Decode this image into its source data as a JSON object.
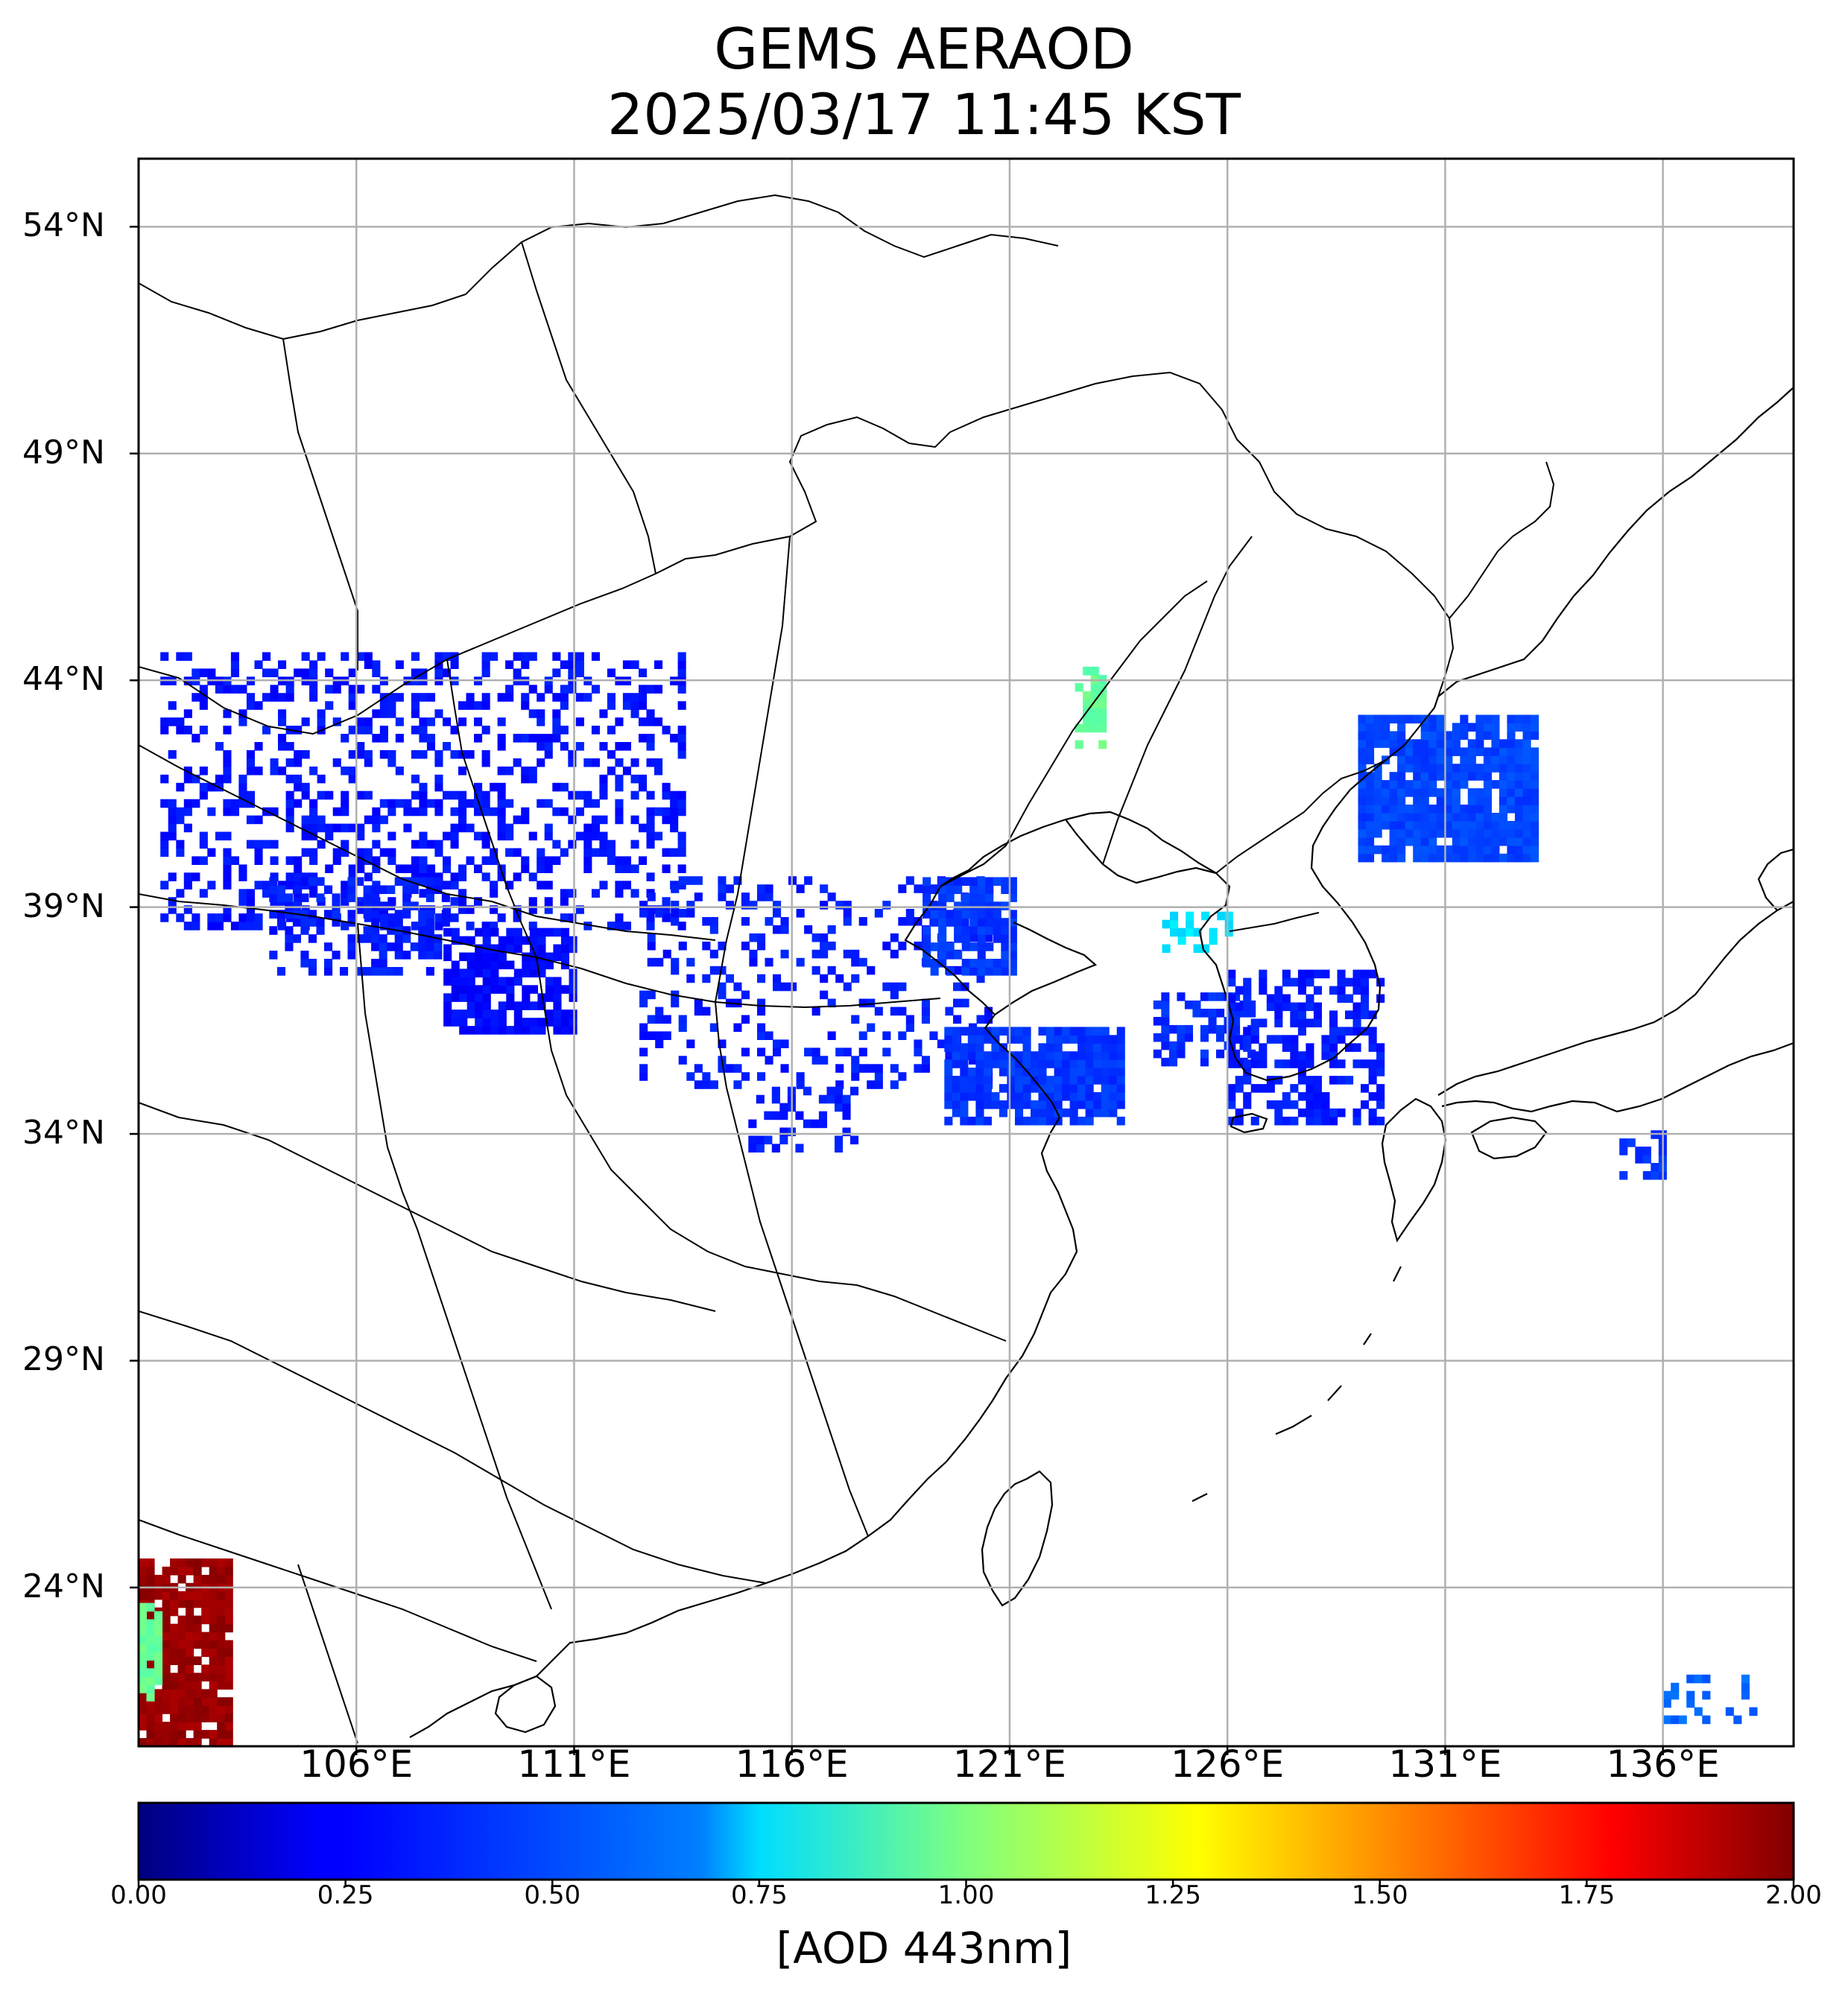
{
  "title": {
    "line1": "GEMS AERAOD",
    "line2": "2025/03/17 11:45 KST"
  },
  "map": {
    "lon_range": [
      101,
      139
    ],
    "lat_range": [
      20.5,
      55.5
    ],
    "lat_ticks": [
      {
        "value": 54,
        "label": "54°N"
      },
      {
        "value": 49,
        "label": "49°N"
      },
      {
        "value": 44,
        "label": "44°N"
      },
      {
        "value": 39,
        "label": "39°N"
      },
      {
        "value": 34,
        "label": "34°N"
      },
      {
        "value": 29,
        "label": "29°N"
      },
      {
        "value": 24,
        "label": "24°N"
      }
    ],
    "lon_ticks": [
      {
        "value": 106,
        "label": "106°E"
      },
      {
        "value": 111,
        "label": "111°E"
      },
      {
        "value": 116,
        "label": "116°E"
      },
      {
        "value": 121,
        "label": "121°E"
      },
      {
        "value": 126,
        "label": "126°E"
      },
      {
        "value": 131,
        "label": "131°E"
      },
      {
        "value": 136,
        "label": "136°E"
      }
    ],
    "grid": true,
    "aod_regions": [
      {
        "lon": [
          101.5,
          113.5
        ],
        "lat": [
          38.5,
          44.5
        ],
        "aod": 0.28,
        "density": 0.35
      },
      {
        "lon": [
          108.0,
          111.0
        ],
        "lat": [
          36.2,
          38.5
        ],
        "aod": 0.26,
        "density": 0.75
      },
      {
        "lon": [
          104.0,
          108.0
        ],
        "lat": [
          37.5,
          39.5
        ],
        "aod": 0.3,
        "density": 0.45
      },
      {
        "lon": [
          112.5,
          120.5
        ],
        "lat": [
          35.0,
          39.5
        ],
        "aod": 0.3,
        "density": 0.22
      },
      {
        "lon": [
          119.0,
          121.0
        ],
        "lat": [
          37.5,
          39.5
        ],
        "aod": 0.35,
        "density": 0.7
      },
      {
        "lon": [
          119.5,
          123.5
        ],
        "lat": [
          34.2,
          36.2
        ],
        "aod": 0.35,
        "density": 0.85
      },
      {
        "lon": [
          124.3,
          126.5
        ],
        "lat": [
          35.5,
          37.0
        ],
        "aod": 0.33,
        "density": 0.55
      },
      {
        "lon": [
          126.0,
          129.5
        ],
        "lat": [
          34.2,
          37.5
        ],
        "aod": 0.3,
        "density": 0.5
      },
      {
        "lon": [
          129.0,
          133.0
        ],
        "lat": [
          40.0,
          43.2
        ],
        "aod": 0.38,
        "density": 0.85
      },
      {
        "lon": [
          115.0,
          117.5
        ],
        "lat": [
          33.6,
          35.0
        ],
        "aod": 0.3,
        "density": 0.35
      },
      {
        "lon": [
          122.5,
          123.2
        ],
        "lat": [
          42.5,
          44.3
        ],
        "aod": 0.95,
        "density": 0.6
      },
      {
        "lon": [
          124.5,
          126.0
        ],
        "lat": [
          38.0,
          38.8
        ],
        "aod": 0.7,
        "density": 0.5
      },
      {
        "lon": [
          101.0,
          103.0
        ],
        "lat": [
          20.5,
          24.5
        ],
        "aod": 1.95,
        "density": 0.9
      },
      {
        "lon": [
          101.0,
          101.4
        ],
        "lat": [
          21.5,
          23.5
        ],
        "aod": 0.95,
        "density": 0.8
      },
      {
        "lon": [
          136.0,
          138.0
        ],
        "lat": [
          21.0,
          22.0
        ],
        "aod": 0.45,
        "density": 0.3
      },
      {
        "lon": [
          135.0,
          136.0
        ],
        "lat": [
          33.0,
          34.0
        ],
        "aod": 0.35,
        "density": 0.5
      }
    ]
  },
  "colorbar": {
    "min": 0,
    "max": 2,
    "colormap": "jet",
    "ticks": [
      "0.00",
      "0.25",
      "0.50",
      "0.75",
      "1.00",
      "1.25",
      "1.50",
      "1.75",
      "2.00"
    ],
    "label": "[AOD 443nm]"
  }
}
